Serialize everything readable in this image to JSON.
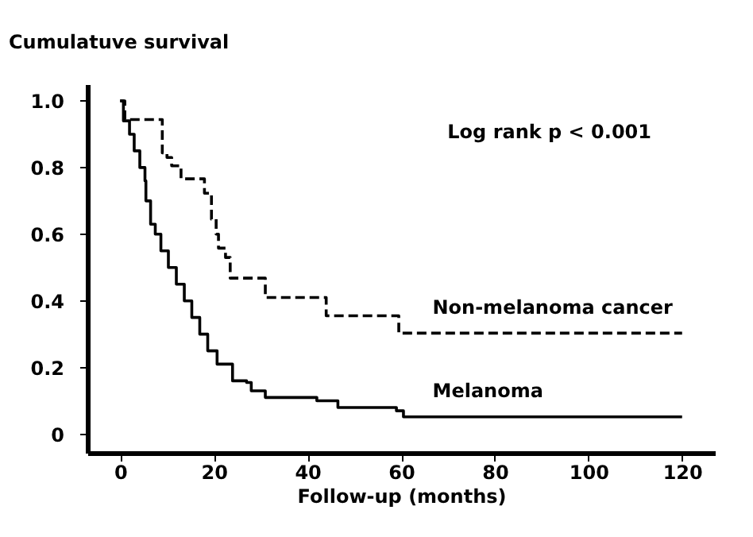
{
  "chart_data": {
    "type": "step",
    "ylabel": "Cumulatuve survival",
    "xlabel": "Follow-up (months)",
    "xlim": [
      -7,
      127
    ],
    "xticks": [
      0,
      20,
      40,
      60,
      80,
      100,
      120
    ],
    "ylim": [
      -0.056,
      1.05
    ],
    "yticks": [
      {
        "value": 0,
        "label": "0"
      },
      0.2,
      0.4,
      0.6,
      0.8,
      {
        "value": 1,
        "label": "1.0"
      }
    ],
    "grid": false,
    "marker": "none",
    "annotations": [
      "Log rank p < 0.001"
    ],
    "series": [
      {
        "name": "Non-melanoma cancer",
        "color": "#000000",
        "line_style": "dashed",
        "x": [
          0,
          1,
          9,
          10,
          11,
          13,
          18,
          19.5,
          20.5,
          21,
          22.5,
          23.5,
          31,
          44,
          59.5,
          120
        ],
        "values": [
          1.0,
          0.944,
          0.844,
          0.83,
          0.805,
          0.766,
          0.723,
          0.645,
          0.6,
          0.558,
          0.53,
          0.468,
          0.41,
          0.355,
          0.303,
          0.303
        ]
      },
      {
        "name": "Melanoma",
        "color": "#000000",
        "line_style": "solid",
        "x": [
          0,
          0.7,
          2,
          3,
          4.2,
          5.3,
          5.5,
          6.5,
          7.5,
          8.7,
          10.3,
          12,
          13.7,
          15.3,
          17,
          18.7,
          20.7,
          24,
          27,
          28,
          31,
          42,
          46.5,
          59,
          60.5,
          120
        ],
        "values": [
          1.0,
          0.94,
          0.9,
          0.85,
          0.8,
          0.76,
          0.7,
          0.63,
          0.6,
          0.55,
          0.5,
          0.45,
          0.4,
          0.35,
          0.3,
          0.25,
          0.21,
          0.16,
          0.155,
          0.13,
          0.11,
          0.1,
          0.08,
          0.07,
          0.052,
          0.052
        ]
      }
    ]
  }
}
